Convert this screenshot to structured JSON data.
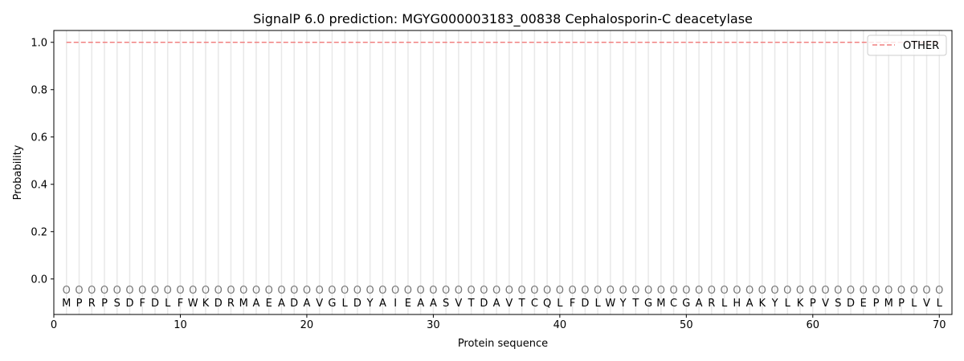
{
  "chart_data": {
    "type": "line",
    "title": "SignalP 6.0 prediction: MGYG000003183_00838 Cephalosporin-C deacetylase",
    "xlabel": "Protein sequence",
    "ylabel": "Probability",
    "xlim": [
      0,
      71
    ],
    "ylim": [
      -0.15,
      1.05
    ],
    "xticks": [
      0,
      10,
      20,
      30,
      40,
      50,
      60,
      70
    ],
    "yticks": [
      0.0,
      0.2,
      0.4,
      0.6,
      0.8,
      1.0
    ],
    "ytick_labels": [
      "0.0",
      "0.2",
      "0.4",
      "0.6",
      "0.8",
      "1.0"
    ],
    "sequence": [
      "M",
      "P",
      "R",
      "P",
      "S",
      "D",
      "F",
      "D",
      "L",
      "F",
      "W",
      "K",
      "D",
      "R",
      "M",
      "A",
      "E",
      "A",
      "D",
      "A",
      "V",
      "G",
      "L",
      "D",
      "Y",
      "A",
      "I",
      "E",
      "A",
      "A",
      "S",
      "V",
      "T",
      "D",
      "A",
      "V",
      "T",
      "C",
      "Q",
      "L",
      "F",
      "D",
      "L",
      "W",
      "Y",
      "T",
      "G",
      "M",
      "C",
      "G",
      "A",
      "R",
      "L",
      "H",
      "A",
      "K",
      "Y",
      "L",
      "K",
      "P",
      "V",
      "S",
      "D",
      "E",
      "P",
      "M",
      "P",
      "L",
      "V",
      "L"
    ],
    "predicted_labels": "OOOOOOOOOOOOOOOOOOOOOOOOOOOOOOOOOOOOOOOOOOOOOOOOOOOOOOOOOOOOOOOOOOOOOO",
    "series": [
      {
        "name": "OTHER",
        "color": "#f08080",
        "style": "dashed",
        "x_start": 1,
        "x_end": 70,
        "value": 1.0
      }
    ],
    "legend": "top-right",
    "grid": "vertical per residue"
  }
}
